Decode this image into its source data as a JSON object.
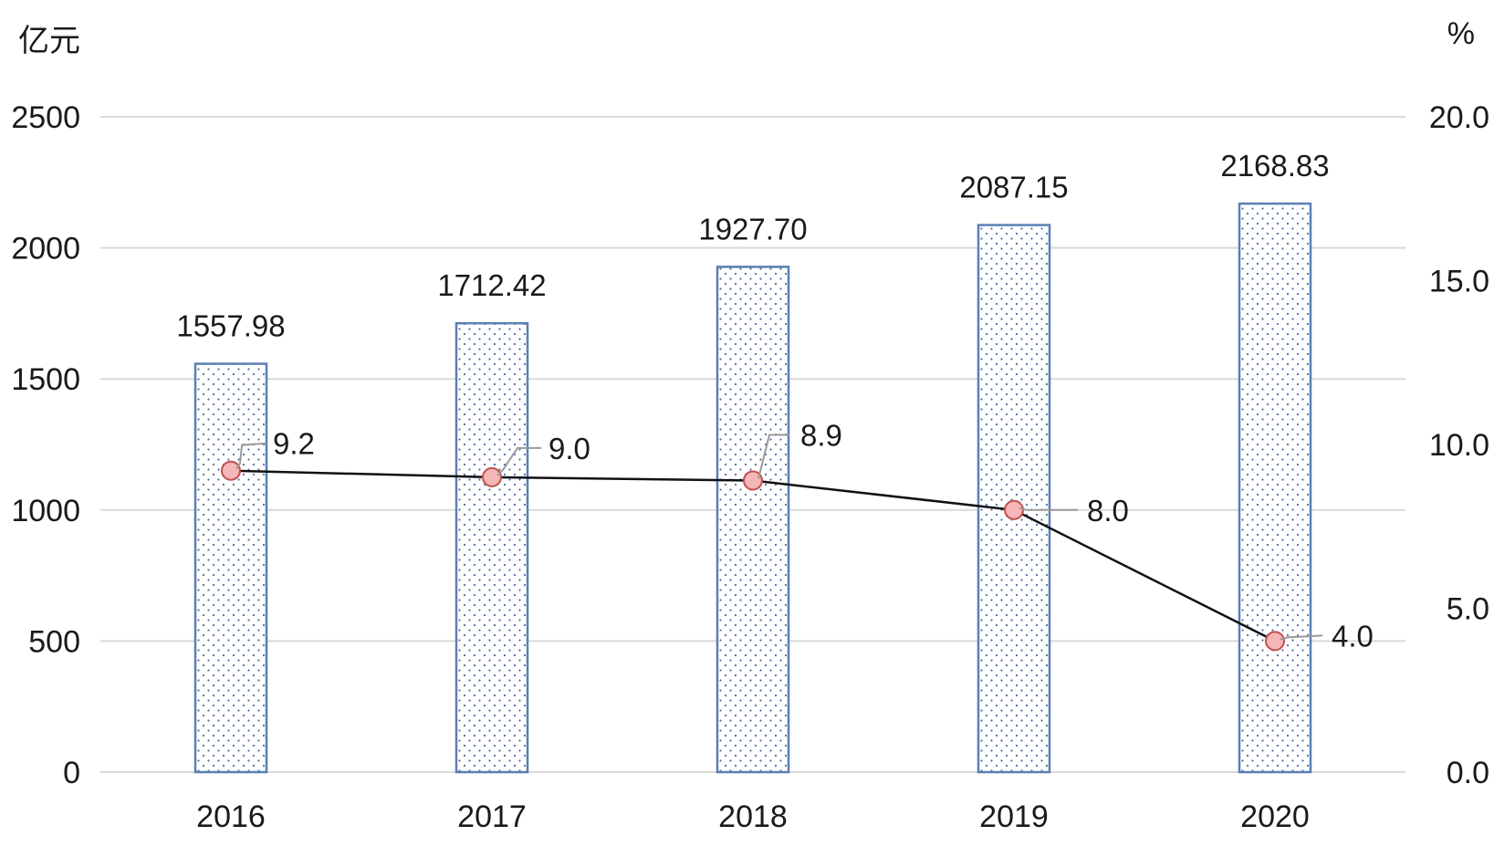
{
  "chart_data": {
    "type": "bar",
    "categories": [
      "2016",
      "2017",
      "2018",
      "2019",
      "2020"
    ],
    "series": [
      {
        "type": "bar",
        "axis": "left",
        "values": [
          1557.98,
          1712.42,
          1927.7,
          2087.15,
          2168.83
        ],
        "labels": [
          "1557.98",
          "1712.42",
          "1927.70",
          "2087.15",
          "2168.83"
        ]
      },
      {
        "type": "line",
        "axis": "right",
        "values": [
          9.2,
          9.0,
          8.9,
          8.0,
          4.0
        ],
        "labels": [
          "9.2",
          "9.0",
          "8.9",
          "8.0",
          "4.0"
        ]
      }
    ],
    "y_left": {
      "unit": "亿元",
      "ylim": [
        0,
        2500
      ],
      "ticks": [
        "0",
        "500",
        "1000",
        "1500",
        "2000",
        "2500"
      ]
    },
    "y_right": {
      "unit": "%",
      "ylim": [
        0,
        20
      ],
      "ticks": [
        "0.0",
        "5.0",
        "10.0",
        "15.0",
        "20.0"
      ]
    },
    "grid": true,
    "legend": "none",
    "colors": {
      "bar_border": "#5b7fb3",
      "bar_dots": "#4a6fa5",
      "line": "#111111",
      "marker_fill": "#f4b6b6",
      "marker_stroke": "#c0504d",
      "grid": "#d9d9d9",
      "leader": "#9a9a9a"
    }
  }
}
